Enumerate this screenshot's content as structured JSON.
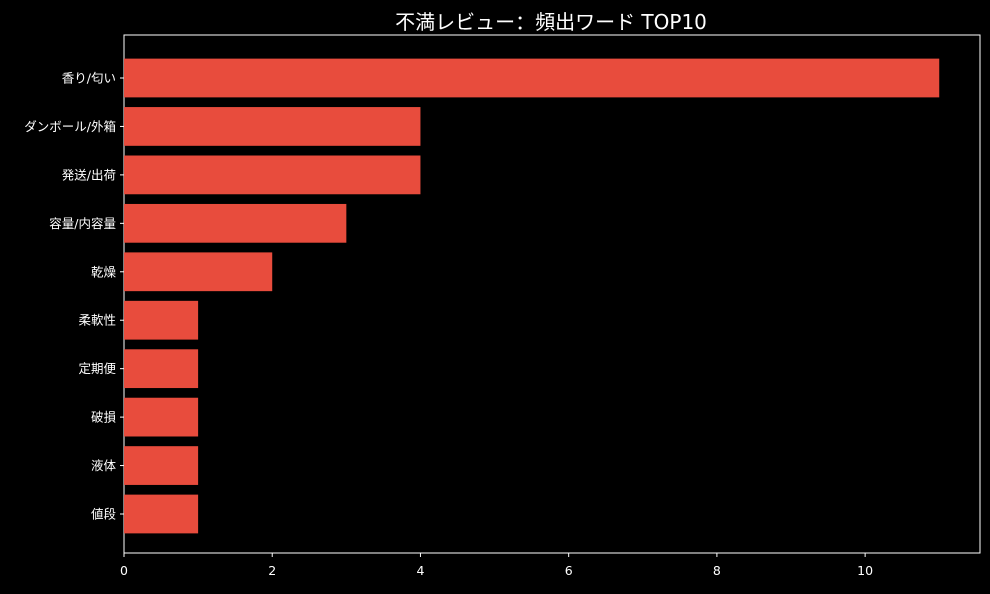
{
  "chart_data": {
    "type": "bar",
    "orientation": "horizontal",
    "title": "不満レビュー：頻出ワード TOP10",
    "xlabel": "",
    "ylabel": "",
    "categories": [
      "香り/匂い",
      "ダンボール/外箱",
      "発送/出荷",
      "容量/内容量",
      "乾燥",
      "柔軟性",
      "定期便",
      "破損",
      "液体",
      "値段"
    ],
    "values": [
      11,
      4,
      4,
      3,
      2,
      1,
      1,
      1,
      1,
      1
    ],
    "xlim": [
      0,
      11.55
    ],
    "xticks": [
      0,
      2,
      4,
      6,
      8,
      10
    ],
    "grid": false,
    "legend": "none"
  },
  "colors": {
    "background": "#000000",
    "bar": "#e84c3d",
    "axis": "#ffffff",
    "text": "#ffffff"
  }
}
